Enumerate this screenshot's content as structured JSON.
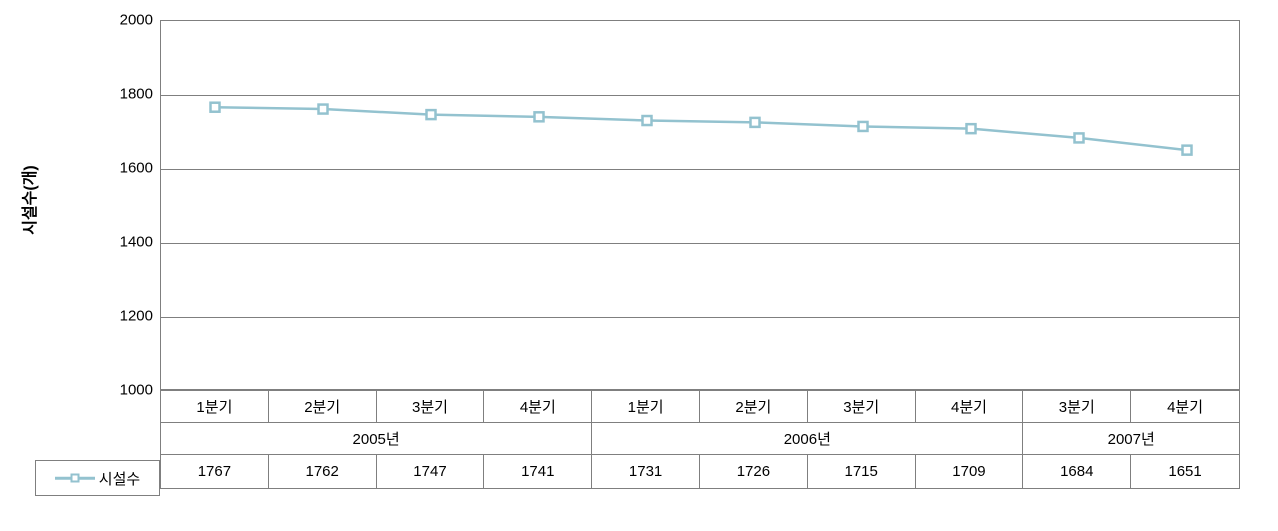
{
  "chart": {
    "type": "line",
    "y_axis_label": "시설수(개)",
    "ylim": [
      1000,
      2000
    ],
    "yticks": [
      1000,
      1200,
      1400,
      1600,
      1800,
      2000
    ],
    "series_name": "시설수",
    "series_color": "#93c2cf",
    "marker_style": "square",
    "marker_fill": "#ffffff",
    "marker_border": "#93c2cf",
    "marker_size": 9,
    "line_width": 2.5,
    "grid_color": "#7f7f7f",
    "background_color": "#ffffff",
    "label_fontsize": 16,
    "tick_fontsize": 15,
    "groups": [
      {
        "label": "2005년",
        "quarters": [
          "1분기",
          "2분기",
          "3분기",
          "4분기"
        ]
      },
      {
        "label": "2006년",
        "quarters": [
          "1분기",
          "2분기",
          "3분기",
          "4분기"
        ]
      },
      {
        "label": "2007년",
        "quarters": [
          "3분기",
          "4분기"
        ]
      }
    ],
    "columns": [
      "1분기",
      "2분기",
      "3분기",
      "4분기",
      "1분기",
      "2분기",
      "3분기",
      "4분기",
      "3분기",
      "4분기"
    ],
    "values": [
      1767,
      1762,
      1747,
      1741,
      1731,
      1726,
      1715,
      1709,
      1684,
      1651
    ]
  }
}
